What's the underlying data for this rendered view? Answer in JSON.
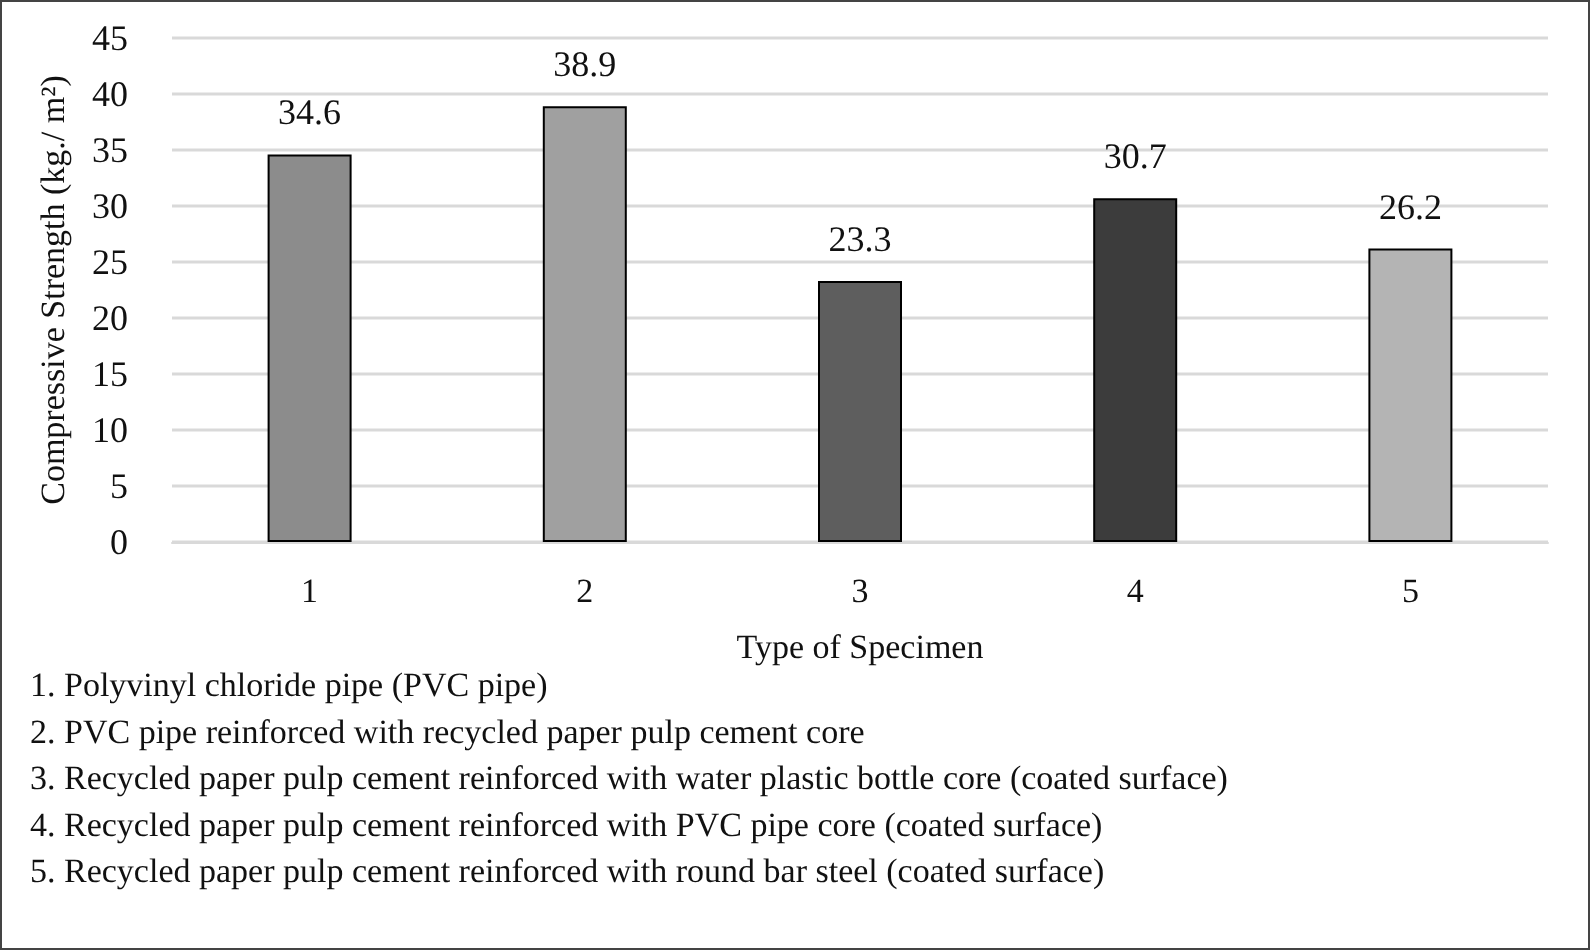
{
  "chart_data": {
    "type": "bar",
    "xlabel": "Type of Specimen",
    "ylabel": "Compressive Strength (kg./ m²)",
    "categories": [
      "1",
      "2",
      "3",
      "4",
      "5"
    ],
    "values": [
      34.6,
      38.9,
      23.3,
      30.7,
      26.2
    ],
    "data_labels": true,
    "colors": [
      "#8c8c8c",
      "#a0a0a0",
      "#5e5e5e",
      "#3c3c3c",
      "#b4b4b4"
    ],
    "ylim": [
      0,
      45
    ],
    "yticks": [
      0,
      5,
      10,
      15,
      20,
      25,
      30,
      35,
      40,
      45
    ],
    "grid": "y",
    "annotations": [
      "1. Polyvinyl chloride pipe (PVC pipe)",
      "2. PVC pipe reinforced with recycled paper pulp cement core",
      "3. Recycled paper pulp cement reinforced with water plastic bottle core (coated surface)",
      "4. Recycled paper pulp cement reinforced with PVC pipe core (coated surface)",
      "5. Recycled paper pulp cement reinforced with round bar steel (coated surface)"
    ]
  }
}
